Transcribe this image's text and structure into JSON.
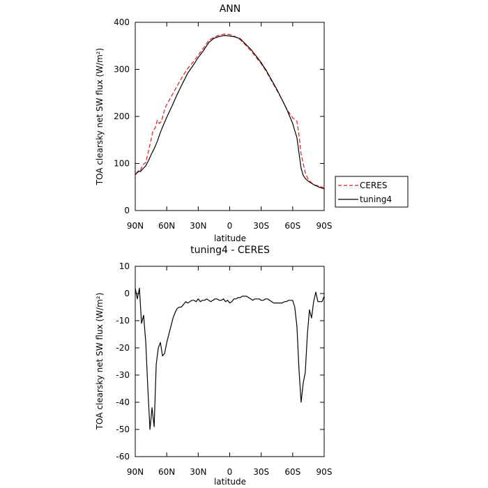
{
  "chart_data": [
    {
      "type": "line",
      "title": "ANN",
      "xlabel": "latitude",
      "ylabel": "TOA clearsky net SW flux (W/m²)",
      "xlim": [
        90,
        -90
      ],
      "ylim": [
        0,
        400
      ],
      "xticks": [
        {
          "value": 90,
          "label": "90N"
        },
        {
          "value": 60,
          "label": "60N"
        },
        {
          "value": 30,
          "label": "30N"
        },
        {
          "value": 0,
          "label": "0"
        },
        {
          "value": -30,
          "label": "30S"
        },
        {
          "value": -60,
          "label": "60S"
        },
        {
          "value": -90,
          "label": "90S"
        }
      ],
      "yticks": [
        0,
        100,
        200,
        300,
        400
      ],
      "legend_position": "right",
      "series": [
        {
          "name": "CERES",
          "color": "#e41a1c",
          "dash": "dashed",
          "x": [
            90,
            87,
            85,
            83,
            80,
            77,
            75,
            73,
            71,
            69,
            67,
            65,
            62,
            60,
            55,
            50,
            45,
            40,
            35,
            30,
            25,
            20,
            15,
            10,
            5,
            0,
            -5,
            -10,
            -15,
            -20,
            -25,
            -30,
            -35,
            -40,
            -45,
            -50,
            -55,
            -60,
            -62,
            -64,
            -66,
            -68,
            -70,
            -72,
            -75,
            -80,
            -85,
            -90
          ],
          "y": [
            78,
            82,
            85,
            97,
            102,
            130,
            150,
            170,
            175,
            192,
            185,
            190,
            215,
            225,
            245,
            265,
            285,
            302,
            315,
            330,
            345,
            362,
            368,
            373,
            375,
            374,
            370,
            363,
            352,
            340,
            326,
            312,
            295,
            275,
            255,
            235,
            213,
            197,
            193,
            190,
            160,
            120,
            100,
            80,
            65,
            55,
            52,
            48
          ]
        },
        {
          "name": "tuning4",
          "color": "#000000",
          "dash": "solid",
          "x": [
            90,
            87,
            85,
            83,
            80,
            77,
            75,
            73,
            71,
            69,
            67,
            65,
            62,
            60,
            55,
            50,
            45,
            40,
            35,
            30,
            25,
            20,
            15,
            10,
            5,
            0,
            -5,
            -10,
            -15,
            -20,
            -25,
            -30,
            -35,
            -40,
            -45,
            -50,
            -55,
            -60,
            -62,
            -64,
            -66,
            -68,
            -70,
            -72,
            -75,
            -80,
            -85,
            -90
          ],
          "y": [
            76,
            84,
            83,
            88,
            95,
            108,
            118,
            127,
            136,
            147,
            160,
            172,
            188,
            198,
            222,
            247,
            270,
            292,
            308,
            325,
            340,
            357,
            366,
            370,
            372,
            371,
            369,
            365,
            354,
            343,
            329,
            314,
            297,
            277,
            257,
            235,
            212,
            185,
            170,
            155,
            122,
            90,
            75,
            68,
            62,
            55,
            50,
            46
          ]
        }
      ]
    },
    {
      "type": "line",
      "title": "tuning4 - CERES",
      "xlabel": "latitude",
      "ylabel": "TOA clearsky net SW flux (W/m²)",
      "xlim": [
        90,
        -90
      ],
      "ylim": [
        -60,
        10
      ],
      "xticks": [
        {
          "value": 90,
          "label": "90N"
        },
        {
          "value": 60,
          "label": "60N"
        },
        {
          "value": 30,
          "label": "30N"
        },
        {
          "value": 0,
          "label": "0"
        },
        {
          "value": -30,
          "label": "30S"
        },
        {
          "value": -60,
          "label": "60S"
        },
        {
          "value": -90,
          "label": "90S"
        }
      ],
      "yticks": [
        10,
        0,
        -10,
        -20,
        -30,
        -40,
        -50,
        -60
      ],
      "series": [
        {
          "name": "tuning4 - CERES",
          "color": "#000000",
          "dash": "solid",
          "x": [
            90,
            88,
            86,
            84,
            82,
            80,
            78,
            76,
            74,
            72,
            70,
            68,
            66,
            64,
            62,
            60,
            58,
            56,
            54,
            52,
            50,
            48,
            46,
            44,
            42,
            40,
            38,
            36,
            34,
            32,
            30,
            28,
            26,
            24,
            22,
            20,
            18,
            16,
            14,
            12,
            10,
            8,
            6,
            4,
            2,
            0,
            -2,
            -4,
            -6,
            -8,
            -10,
            -12,
            -14,
            -16,
            -18,
            -20,
            -22,
            -24,
            -26,
            -28,
            -30,
            -32,
            -34,
            -36,
            -38,
            -40,
            -42,
            -44,
            -46,
            -48,
            -50,
            -52,
            -54,
            -56,
            -58,
            -60,
            -62,
            -64,
            -66,
            -68,
            -70,
            -72,
            -74,
            -76,
            -78,
            -80,
            -82,
            -84,
            -86,
            -88,
            -90
          ],
          "y": [
            2,
            -2,
            2,
            -11,
            -8,
            -18,
            -35,
            -50,
            -42,
            -49,
            -26,
            -20,
            -18,
            -23,
            -22,
            -18,
            -15,
            -12,
            -9,
            -7,
            -5.5,
            -5,
            -5,
            -4,
            -3,
            -3.5,
            -3,
            -2.5,
            -2.5,
            -3,
            -2,
            -3,
            -2.5,
            -2.5,
            -2,
            -2.5,
            -3,
            -2.5,
            -2,
            -2,
            -2.5,
            -2.5,
            -2,
            -3,
            -2.5,
            -3.5,
            -3,
            -2,
            -2,
            -1.5,
            -1.5,
            -1,
            -1,
            -1,
            -1.5,
            -2,
            -2.5,
            -2,
            -2,
            -2,
            -2.5,
            -2.5,
            -2,
            -2,
            -2.5,
            -3,
            -3.5,
            -3.5,
            -3.5,
            -3.5,
            -3.5,
            -3,
            -3,
            -2.5,
            -2.5,
            -2.5,
            -5,
            -12,
            -28,
            -40,
            -33,
            -29,
            -15,
            -6,
            -9,
            -3,
            0.5,
            -3,
            -3,
            -3,
            -1
          ]
        }
      ]
    }
  ]
}
